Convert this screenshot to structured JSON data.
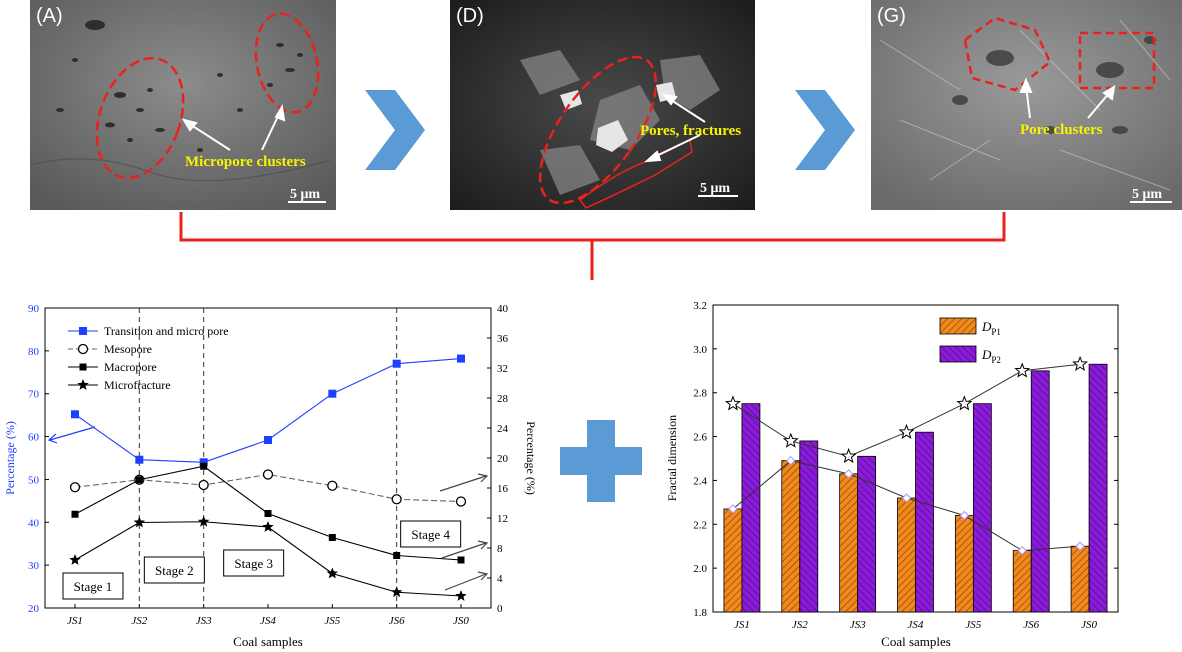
{
  "panels": [
    {
      "label": "(A)",
      "annotation": "Micropore clusters",
      "scale": "5 μm"
    },
    {
      "label": "(D)",
      "annotation": "Pores, fractures",
      "scale": "5 μm"
    },
    {
      "label": "(G)",
      "annotation": "Pore clusters",
      "scale": "5 μm"
    }
  ],
  "colors": {
    "blue_series": "#1f3fff",
    "arrow_fill": "#5b9bd5",
    "bracket": "#e8221e",
    "dashed_region": "#e8221e",
    "annotation_text": "#f5f500",
    "dp1_bar": "#f08a1e",
    "dp2_bar": "#8a1bd8"
  },
  "chart_data": [
    {
      "type": "line",
      "x": [
        "JS1",
        "JS2",
        "JS3",
        "JS4",
        "JS5",
        "JS6",
        "JS0"
      ],
      "xlabel": "Coal samples",
      "ylabel_left": "Percentage (%)",
      "ylabel_right": "Percentage (%)",
      "ylim_left": [
        20,
        90
      ],
      "yticks_left": [
        "20",
        "30",
        "40",
        "50",
        "60",
        "70",
        "80",
        "90"
      ],
      "ylim_right": [
        0,
        40
      ],
      "yticks_right": [
        "0",
        "4",
        "8",
        "12",
        "16",
        "20",
        "24",
        "28",
        "32",
        "36",
        "40"
      ],
      "series": [
        {
          "name": "Transition and micro pore",
          "axis": "left",
          "marker": "square",
          "values": [
            65.2,
            54.6,
            54.0,
            59.2,
            70.0,
            77.0,
            78.2
          ]
        },
        {
          "name": "Mesopore",
          "axis": "right",
          "marker": "circle",
          "dashed": true,
          "values": [
            16.1,
            17.1,
            16.4,
            17.8,
            16.3,
            14.5,
            14.2
          ]
        },
        {
          "name": "Macropore",
          "axis": "right",
          "marker": "filled-square",
          "values": [
            12.5,
            17.1,
            18.9,
            12.6,
            9.4,
            7.0,
            6.4
          ]
        },
        {
          "name": "Microfracture",
          "axis": "right",
          "marker": "star",
          "values": [
            6.4,
            11.4,
            11.5,
            10.8,
            4.6,
            2.1,
            1.6
          ]
        }
      ],
      "stages": [
        "Stage 1",
        "Stage 2",
        "Stage 3",
        "Stage 4"
      ],
      "stage_dividers_after": [
        "JS2",
        "JS3",
        "JS6"
      ]
    },
    {
      "type": "bar",
      "categories": [
        "JS1",
        "JS2",
        "JS3",
        "JS4",
        "JS5",
        "JS6",
        "JS0"
      ],
      "xlabel": "Coal samples",
      "ylabel": "Fractal dimension",
      "ylim": [
        1.8,
        3.2
      ],
      "yticks": [
        "1.8",
        "2.0",
        "2.2",
        "2.4",
        "2.6",
        "2.8",
        "3.0",
        "3.2"
      ],
      "series": [
        {
          "name": "DP1",
          "legend_main": "D",
          "legend_sub": "P1",
          "values": [
            2.27,
            2.49,
            2.43,
            2.32,
            2.24,
            2.08,
            2.1
          ]
        },
        {
          "name": "DP2",
          "legend_main": "D",
          "legend_sub": "P2",
          "values": [
            2.75,
            2.58,
            2.51,
            2.62,
            2.75,
            2.9,
            2.93
          ]
        }
      ]
    }
  ]
}
